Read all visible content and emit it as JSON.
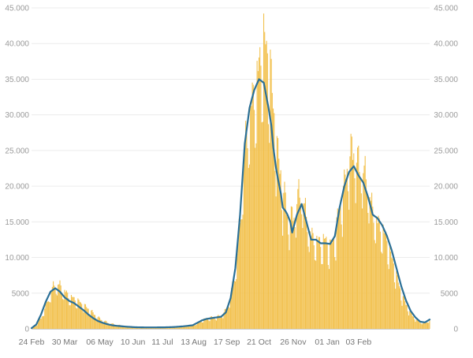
{
  "chart_data": {
    "type": "bar",
    "title": "",
    "xlabel": "",
    "ylabel": "",
    "ylim": [
      0,
      45000
    ],
    "grid": true,
    "y_axis_both_sides": true,
    "y_ticks": [
      {
        "value": 0,
        "label": "0"
      },
      {
        "value": 5000,
        "label": "5000"
      },
      {
        "value": 10000,
        "label": "10.000"
      },
      {
        "value": 15000,
        "label": "15.000"
      },
      {
        "value": 20000,
        "label": "20.000"
      },
      {
        "value": 25000,
        "label": "25.000"
      },
      {
        "value": 30000,
        "label": "30.000"
      },
      {
        "value": 35000,
        "label": "35.000"
      },
      {
        "value": 40000,
        "label": "40.000"
      },
      {
        "value": 45000,
        "label": "45.000"
      }
    ],
    "x_ticks": [
      {
        "label": "24 Feb",
        "day": 0
      },
      {
        "label": "30 Mar",
        "day": 35
      },
      {
        "label": "06 May",
        "day": 72
      },
      {
        "label": "10 Jun",
        "day": 107
      },
      {
        "label": "11 Jul",
        "day": 138
      },
      {
        "label": "13 Aug",
        "day": 171
      },
      {
        "label": "17 Sep",
        "day": 206
      },
      {
        "label": "21 Oct",
        "day": 240
      },
      {
        "label": "26 Nov",
        "day": 276
      },
      {
        "label": "01 Jan",
        "day": 312
      },
      {
        "label": "03 Feb",
        "day": 345
      }
    ],
    "colors": {
      "bars": "#f2c14e",
      "line": "#2a6f97",
      "grid": "#ececec",
      "axis": "#cccccc"
    },
    "series": [
      {
        "kind": "bars",
        "daily_anchor_days": [
          0,
          5,
          10,
          15,
          20,
          25,
          30,
          35,
          40,
          45,
          50,
          55,
          60,
          65,
          70,
          75,
          80,
          85,
          90,
          100,
          110,
          120,
          130,
          140,
          150,
          160,
          170,
          180,
          185,
          190,
          200,
          205,
          210,
          215,
          220,
          225,
          230,
          235,
          240,
          245,
          250,
          253,
          255,
          258,
          260,
          263,
          265,
          268,
          270,
          273,
          275,
          280,
          285,
          290,
          295,
          300,
          305,
          310,
          315,
          320,
          325,
          330,
          335,
          340,
          345,
          350,
          355,
          360,
          365,
          370,
          375,
          380,
          385,
          390,
          395,
          400,
          405,
          410,
          415,
          420
        ],
        "daily_anchor_values": [
          80,
          500,
          1500,
          3200,
          5000,
          6300,
          6000,
          5200,
          4500,
          4200,
          3800,
          3300,
          2800,
          2200,
          1600,
          1200,
          900,
          700,
          550,
          380,
          250,
          200,
          180,
          190,
          230,
          320,
          450,
          1200,
          1500,
          1600,
          1800,
          2600,
          4500,
          8000,
          15000,
          25000,
          30000,
          33000,
          36500,
          40500,
          38000,
          35000,
          31000,
          27000,
          24000,
          22000,
          19000,
          18000,
          16000,
          15500,
          15500,
          18000,
          19500,
          15500,
          13000,
          12500,
          12000,
          12500,
          11500,
          13000,
          17000,
          20000,
          24000,
          25500,
          23000,
          22500,
          20000,
          16500,
          15000,
          14000,
          12500,
          10000,
          7500,
          5000,
          3500,
          2200,
          1400,
          900,
          800,
          1200
        ]
      },
      {
        "kind": "line",
        "anchor_days": [
          0,
          5,
          10,
          15,
          20,
          25,
          30,
          35,
          40,
          45,
          50,
          55,
          60,
          65,
          70,
          75,
          80,
          85,
          90,
          100,
          110,
          120,
          130,
          140,
          150,
          160,
          170,
          180,
          185,
          190,
          200,
          205,
          210,
          215,
          220,
          225,
          230,
          235,
          240,
          245,
          250,
          253,
          255,
          258,
          260,
          263,
          265,
          268,
          270,
          273,
          275,
          280,
          285,
          290,
          295,
          300,
          305,
          310,
          315,
          320,
          325,
          330,
          335,
          340,
          345,
          350,
          355,
          360,
          365,
          370,
          375,
          380,
          385,
          390,
          395,
          400,
          405,
          410,
          415,
          420
        ],
        "anchor_values": [
          100,
          600,
          2000,
          3800,
          5200,
          5700,
          5200,
          4400,
          3900,
          3600,
          3100,
          2600,
          2000,
          1500,
          1100,
          850,
          650,
          500,
          420,
          300,
          220,
          200,
          200,
          210,
          250,
          350,
          500,
          1200,
          1400,
          1500,
          1700,
          2300,
          4300,
          8500,
          16000,
          26000,
          31000,
          33500,
          35000,
          34500,
          31000,
          28500,
          25500,
          22500,
          21000,
          19000,
          17000,
          16500,
          16000,
          15000,
          13500,
          16000,
          17500,
          15000,
          12500,
          12500,
          12000,
          12000,
          11900,
          13000,
          17000,
          20000,
          22000,
          22800,
          21500,
          20500,
          18500,
          16000,
          15500,
          14500,
          13000,
          11000,
          8500,
          6000,
          4000,
          2500,
          1600,
          1000,
          900,
          1300
        ]
      }
    ]
  }
}
